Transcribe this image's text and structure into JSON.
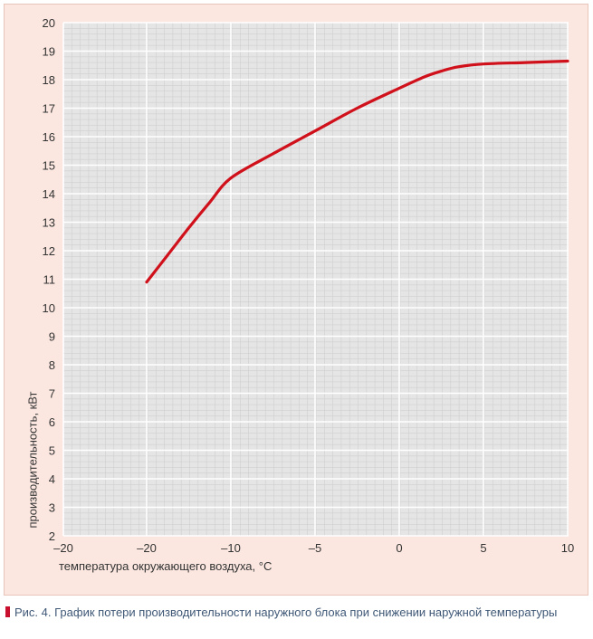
{
  "chart_data": {
    "type": "line",
    "xlabel": "температура окружающего воздуха, °С",
    "ylabel": "производительность, кВт",
    "x_ticks": [
      "–20",
      "–20",
      "–10",
      "–5",
      "0",
      "5",
      "10"
    ],
    "y_ticks": [
      "2",
      "3",
      "4",
      "5",
      "6",
      "7",
      "8",
      "9",
      "10",
      "11",
      "12",
      "13",
      "14",
      "15",
      "16",
      "17",
      "18",
      "19",
      "20"
    ],
    "ylim": [
      2,
      20
    ],
    "grid": true,
    "series": [
      {
        "color": "#d0101a",
        "points": [
          [
            -20,
            10.9
          ],
          [
            -17.5,
            11.85
          ],
          [
            -15,
            12.8
          ],
          [
            -12.5,
            13.7
          ],
          [
            -10,
            14.55
          ],
          [
            -7.5,
            15.4
          ],
          [
            -5,
            16.2
          ],
          [
            -2.5,
            17.0
          ],
          [
            0,
            17.7
          ],
          [
            1.5,
            18.1
          ],
          [
            2.5,
            18.3
          ],
          [
            3.5,
            18.45
          ],
          [
            5,
            18.55
          ],
          [
            7.5,
            18.6
          ],
          [
            10,
            18.65
          ]
        ]
      }
    ]
  },
  "caption": {
    "label": "Рис. 4.",
    "text": "График потери производительности наружного блока при снижении наружной температуры"
  },
  "colors": {
    "background": "#fbe7e0",
    "plot_area": "#e5e5e5",
    "line": "#d0101a",
    "caption_marker": "#c8102e",
    "caption_text": "#3f5876"
  }
}
